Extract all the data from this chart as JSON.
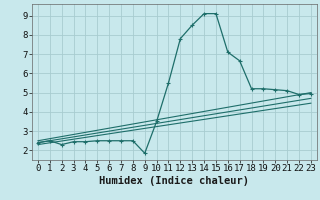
{
  "xlabel": "Humidex (Indice chaleur)",
  "background_color": "#c8e8ec",
  "grid_color": "#a8ccd0",
  "line_color": "#1e6e6a",
  "xlim": [
    -0.5,
    23.5
  ],
  "ylim": [
    1.5,
    9.6
  ],
  "yticks": [
    2,
    3,
    4,
    5,
    6,
    7,
    8,
    9
  ],
  "xticks": [
    0,
    1,
    2,
    3,
    4,
    5,
    6,
    7,
    8,
    9,
    10,
    11,
    12,
    13,
    14,
    15,
    16,
    17,
    18,
    19,
    20,
    21,
    22,
    23
  ],
  "main_x": [
    0,
    1,
    2,
    3,
    4,
    5,
    6,
    7,
    8,
    9,
    10,
    11,
    12,
    13,
    14,
    15,
    16,
    17,
    18,
    19,
    20,
    21,
    22,
    23
  ],
  "main_y": [
    2.4,
    2.5,
    2.3,
    2.45,
    2.45,
    2.5,
    2.5,
    2.5,
    2.5,
    1.85,
    3.5,
    5.5,
    7.8,
    8.5,
    9.1,
    9.1,
    7.1,
    6.65,
    5.2,
    5.2,
    5.15,
    5.1,
    4.9,
    4.95
  ],
  "trend_lines": [
    [
      0,
      2.3,
      23,
      4.45
    ],
    [
      0,
      2.4,
      23,
      4.7
    ],
    [
      0,
      2.5,
      23,
      5.0
    ]
  ],
  "tick_fontsize": 6.5,
  "xlabel_fontsize": 7.5
}
